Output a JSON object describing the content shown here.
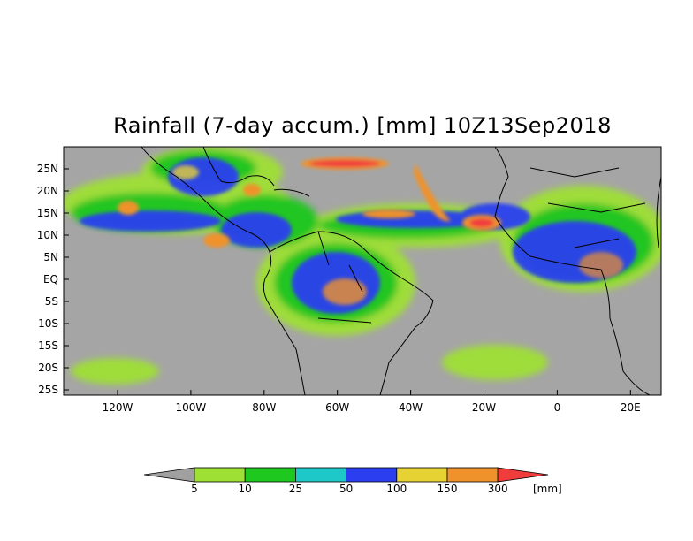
{
  "map": {
    "title": "Rainfall (7-day accum.) [mm] 10Z13Sep2018",
    "lat_ticks": [
      "25N",
      "20N",
      "15N",
      "10N",
      "5N",
      "EQ",
      "5S",
      "10S",
      "15S",
      "20S",
      "25S"
    ],
    "lon_ticks": [
      "120W",
      "100W",
      "80W",
      "60W",
      "40W",
      "20W",
      "0",
      "20E"
    ],
    "extent": {
      "lon": [
        -135,
        28
      ],
      "lat": [
        -26,
        30
      ]
    }
  },
  "colorbar": {
    "unit": "[mm]",
    "tick_labels": [
      "5",
      "10",
      "25",
      "50",
      "100",
      "150",
      "300"
    ],
    "colors": [
      "#a0a0a0",
      "#9fe034",
      "#1ec81e",
      "#1ec8c8",
      "#2b3ff0",
      "#e6d232",
      "#f0922b",
      "#f03c3c"
    ]
  },
  "colors": {
    "background_no_rain": "#a5a5a5",
    "coastline": "#000000"
  }
}
